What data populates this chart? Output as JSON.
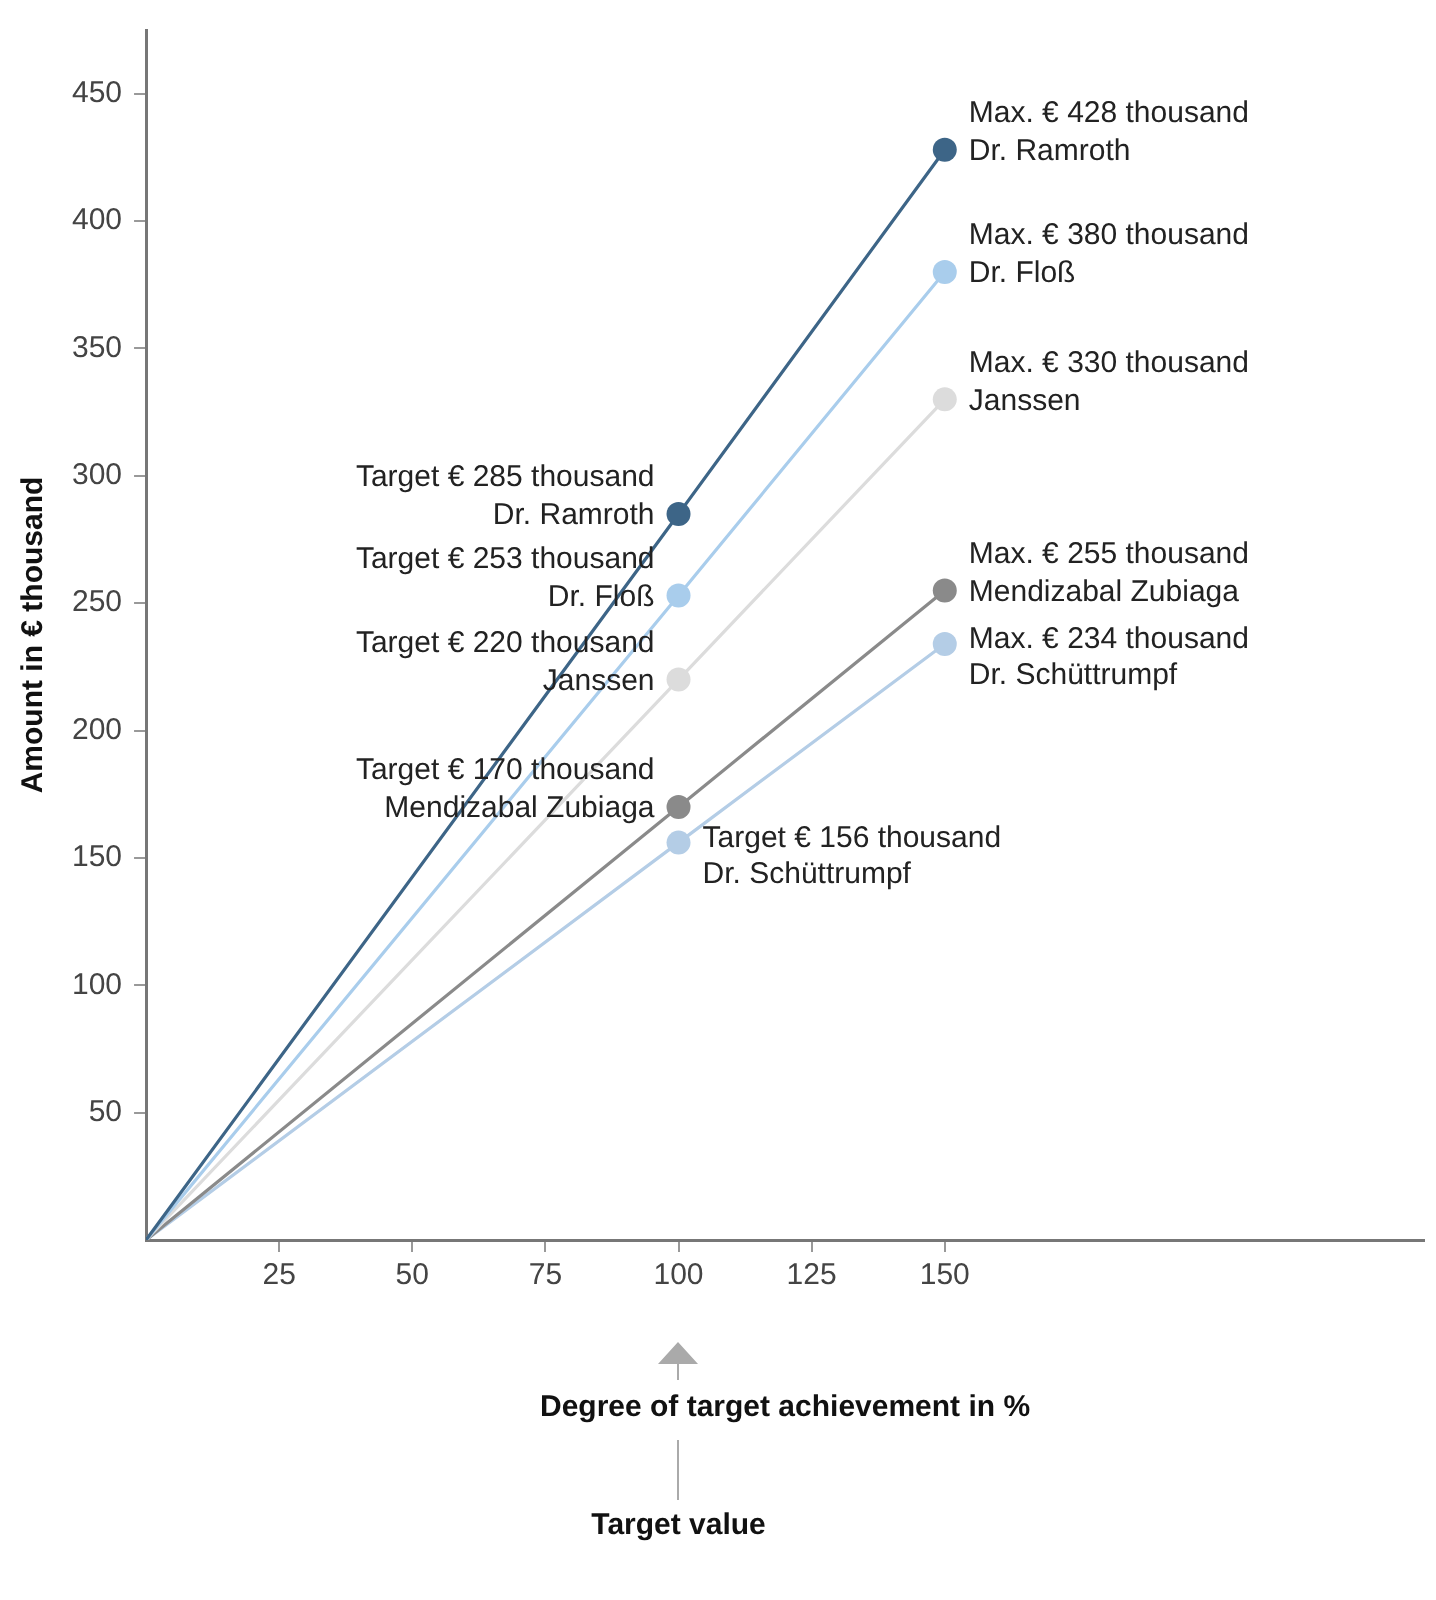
{
  "chart_data": {
    "type": "line",
    "xlabel": "Degree of target achievement in %",
    "ylabel": "Amount in € thousand",
    "x": [
      0,
      100,
      150
    ],
    "xlim": [
      0,
      240
    ],
    "xticks": [
      25,
      50,
      75,
      100,
      125,
      150
    ],
    "ylim": [
      0,
      475
    ],
    "yticks": [
      50,
      100,
      150,
      200,
      250,
      300,
      350,
      400,
      450
    ],
    "grid": false,
    "marker": "circle",
    "line_style": "solid",
    "series": [
      {
        "name": "Dr. Ramroth",
        "color": "#3d6587",
        "values": [
          0,
          285,
          428
        ],
        "value_labels": [
          null,
          "Target € 285 thousand",
          "Max. € 428 thousand"
        ]
      },
      {
        "name": "Dr. Floß",
        "color": "#a9cdec",
        "values": [
          0,
          253,
          380
        ],
        "value_labels": [
          null,
          "Target € 253 thousand",
          "Max. € 380 thousand"
        ]
      },
      {
        "name": "Janssen",
        "color": "#dcdcdc",
        "values": [
          0,
          220,
          330
        ],
        "value_labels": [
          null,
          "Target € 220 thousand",
          "Max. € 330 thousand"
        ]
      },
      {
        "name": "Mendizabal Zubiaga",
        "color": "#8a8a8a",
        "values": [
          0,
          170,
          255
        ],
        "value_labels": [
          null,
          "Target € 170 thousand",
          "Max. € 255 thousand"
        ]
      },
      {
        "name": "Dr. Schüttrumpf",
        "color": "#b4cde6",
        "values": [
          0,
          156,
          234
        ],
        "value_labels": [
          null,
          "Target € 156 thousand",
          "Max. € 234 thousand"
        ]
      }
    ],
    "annotations": [
      "Target value"
    ]
  }
}
